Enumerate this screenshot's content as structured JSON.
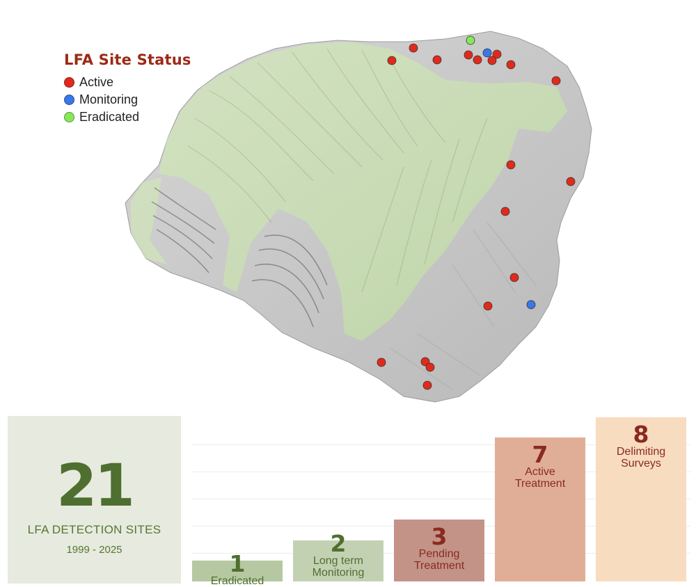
{
  "map": {
    "legend": {
      "title": "LFA Site Status",
      "items": [
        {
          "label": "Active",
          "color": "#e02a1c"
        },
        {
          "label": "Monitoring",
          "color": "#3a78e8"
        },
        {
          "label": "Eradicated",
          "color": "#86e85a"
        }
      ]
    },
    "sites": [
      {
        "status": "Eradicated",
        "position": [
          676,
          58
        ]
      },
      {
        "status": "Active",
        "position": [
          594,
          69
        ]
      },
      {
        "status": "Active",
        "position": [
          563,
          87
        ]
      },
      {
        "status": "Active",
        "position": [
          628,
          86
        ]
      },
      {
        "status": "Active",
        "position": [
          673,
          79
        ]
      },
      {
        "status": "Active",
        "position": [
          686,
          86
        ]
      },
      {
        "status": "Monitoring",
        "position": [
          700,
          76
        ]
      },
      {
        "status": "Active",
        "position": [
          714,
          78
        ]
      },
      {
        "status": "Active",
        "position": [
          707,
          87
        ]
      },
      {
        "status": "Active",
        "position": [
          734,
          93
        ]
      },
      {
        "status": "Active",
        "position": [
          799,
          116
        ]
      },
      {
        "status": "Active",
        "position": [
          734,
          237
        ]
      },
      {
        "status": "Active",
        "position": [
          820,
          261
        ]
      },
      {
        "status": "Active",
        "position": [
          726,
          304
        ]
      },
      {
        "status": "Active",
        "position": [
          739,
          399
        ]
      },
      {
        "status": "Active",
        "position": [
          701,
          440
        ]
      },
      {
        "status": "Monitoring",
        "position": [
          763,
          438
        ]
      },
      {
        "status": "Active",
        "position": [
          548,
          521
        ]
      },
      {
        "status": "Active",
        "position": [
          611,
          520
        ]
      },
      {
        "status": "Active",
        "position": [
          618,
          528
        ]
      },
      {
        "status": "Active",
        "position": [
          614,
          554
        ]
      }
    ]
  },
  "summary": {
    "total": "21",
    "label": "LFA DETECTION SITES",
    "years": "1999 - 2025"
  },
  "chart_data": {
    "type": "bar",
    "categories": [
      "Eradicated",
      "Long term Monitoring",
      "Pending Treatment",
      "Active Treatment",
      "Delimiting Surveys"
    ],
    "values": [
      1,
      2,
      3,
      7,
      8
    ],
    "ylim": [
      0,
      8
    ],
    "grid": true,
    "colors": [
      "#b6c8a2",
      "#c3d1b3",
      "#c39388",
      "#e0ae97",
      "#f8dcc0"
    ],
    "label_colors": [
      "#4f6f30",
      "#4f6f30",
      "#8a2a1e",
      "#8a2a1e",
      "#8a2a1e"
    ],
    "labels": [
      {
        "value": "1",
        "text": "Eradicated"
      },
      {
        "value": "2",
        "text": "Long term\nMonitoring"
      },
      {
        "value": "3",
        "text": "Pending\nTreatment"
      },
      {
        "value": "7",
        "text": "Active\nTreatment"
      },
      {
        "value": "8",
        "text": "Delimiting\nSurveys"
      }
    ]
  }
}
